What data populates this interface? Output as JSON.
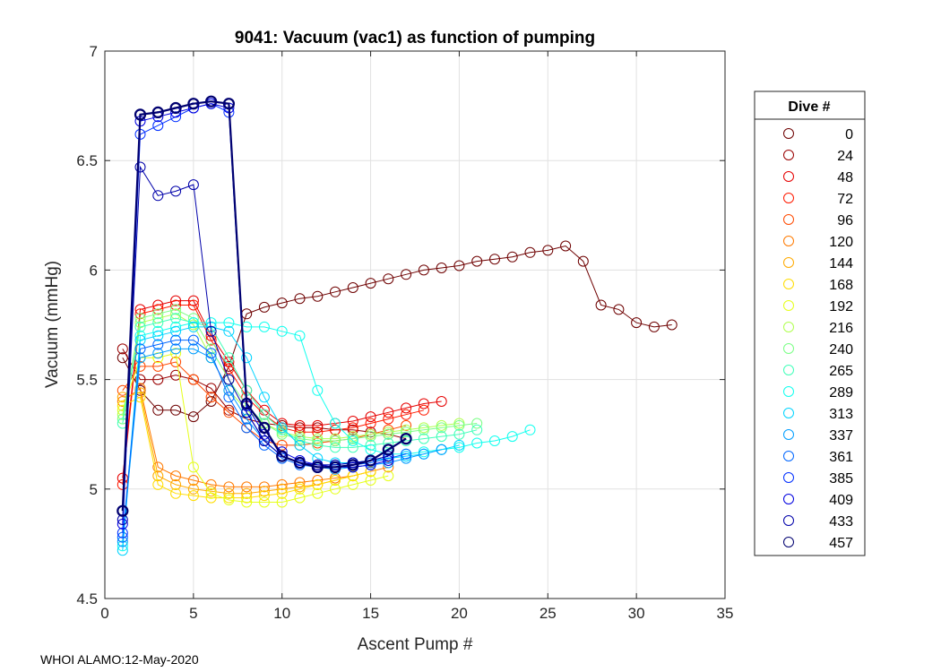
{
  "chart_data": {
    "type": "line",
    "title": "9041: Vacuum (vac1) as function of pumping",
    "xlabel": "Ascent Pump #",
    "ylabel": "Vacuum (mmHg)",
    "xlim": [
      0,
      35
    ],
    "ylim": [
      4.5,
      7
    ],
    "xticks": [
      0,
      5,
      10,
      15,
      20,
      25,
      30,
      35
    ],
    "yticks": [
      4.5,
      5,
      5.5,
      6,
      6.5,
      7
    ],
    "ytick_labels": [
      "4.5",
      "5",
      "5.5",
      "6",
      "6.5",
      "7"
    ],
    "grid": true,
    "marker": "open-circle",
    "legend": {
      "title": "Dive #",
      "placement": "outside-right",
      "entries": [
        "0",
        "24",
        "48",
        "72",
        "96",
        "120",
        "144",
        "168",
        "192",
        "216",
        "240",
        "265",
        "289",
        "313",
        "337",
        "361",
        "385",
        "409",
        "433",
        "457"
      ],
      "colors": [
        "#6e0000",
        "#9a0000",
        "#e60000",
        "#ff1a00",
        "#ff4a00",
        "#ff7a00",
        "#ffaa00",
        "#ffdd00",
        "#e6ff19",
        "#b0ff50",
        "#7aff85",
        "#40ffb9",
        "#10ffef",
        "#00d4ff",
        "#009eff",
        "#0066ff",
        "#002eff",
        "#0000e0",
        "#0000aa",
        "#000070"
      ]
    },
    "series": [
      {
        "name": "0",
        "x": [
          1,
          2,
          3,
          4,
          5,
          6,
          7,
          8,
          9,
          10,
          11,
          12,
          13,
          14,
          15,
          16,
          17,
          18,
          19,
          20,
          21,
          22,
          23,
          24,
          25,
          26,
          27,
          28,
          29,
          30,
          31,
          32
        ],
        "values": [
          5.6,
          5.45,
          5.36,
          5.36,
          5.33,
          5.4,
          5.56,
          5.8,
          5.83,
          5.85,
          5.87,
          5.88,
          5.9,
          5.92,
          5.94,
          5.96,
          5.98,
          6.0,
          6.01,
          6.02,
          6.04,
          6.05,
          6.06,
          6.08,
          6.09,
          6.11,
          6.04,
          5.84,
          5.82,
          5.76,
          5.74,
          5.75
        ]
      },
      {
        "name": "24",
        "x": [
          1,
          2,
          3,
          4,
          5,
          6,
          7,
          8,
          9,
          10,
          11,
          12,
          13,
          14,
          15,
          16,
          17
        ],
        "values": [
          5.64,
          5.5,
          5.5,
          5.52,
          5.5,
          5.46,
          5.36,
          5.32,
          5.3,
          5.29,
          5.28,
          5.28,
          5.27,
          5.27,
          5.26,
          5.25,
          5.23
        ]
      },
      {
        "name": "48",
        "x": [
          1,
          2,
          3,
          4,
          5,
          6,
          7,
          8,
          9,
          10,
          11,
          12,
          13,
          14,
          15,
          16,
          17,
          18,
          19
        ],
        "values": [
          5.05,
          5.82,
          5.84,
          5.86,
          5.86,
          5.7,
          5.58,
          5.45,
          5.36,
          5.3,
          5.29,
          5.29,
          5.3,
          5.31,
          5.33,
          5.35,
          5.37,
          5.39,
          5.4
        ]
      },
      {
        "name": "72",
        "x": [
          1,
          2,
          3,
          4,
          5,
          6,
          7,
          8,
          9,
          10,
          11,
          12,
          13,
          14,
          15,
          16,
          17,
          18
        ],
        "values": [
          5.02,
          5.8,
          5.82,
          5.84,
          5.84,
          5.68,
          5.55,
          5.42,
          5.34,
          5.28,
          5.26,
          5.26,
          5.27,
          5.28,
          5.3,
          5.32,
          5.34,
          5.36
        ]
      },
      {
        "name": "96",
        "x": [
          1,
          2,
          3,
          4,
          5,
          6,
          7,
          8,
          9,
          10,
          11,
          12,
          13,
          14,
          15,
          16,
          17
        ],
        "values": [
          5.45,
          5.56,
          5.56,
          5.58,
          5.5,
          5.42,
          5.35,
          5.28,
          5.22,
          5.2,
          5.2,
          5.21,
          5.22,
          5.23,
          5.25,
          5.27,
          5.29
        ]
      },
      {
        "name": "120",
        "x": [
          1,
          2,
          3,
          4,
          5,
          6,
          7,
          8,
          9,
          10,
          11,
          12,
          13,
          14,
          15,
          16
        ],
        "values": [
          5.4,
          5.46,
          5.1,
          5.06,
          5.04,
          5.02,
          5.01,
          5.01,
          5.01,
          5.02,
          5.03,
          5.04,
          5.05,
          5.06,
          5.08,
          5.1
        ]
      },
      {
        "name": "144",
        "x": [
          1,
          2,
          3,
          4,
          5,
          6,
          7,
          8,
          9,
          10,
          11,
          12,
          13,
          14,
          15
        ],
        "values": [
          5.42,
          5.44,
          5.06,
          5.02,
          5.0,
          4.99,
          4.98,
          4.98,
          4.99,
          5.0,
          5.01,
          5.02,
          5.04,
          5.06,
          5.08
        ]
      },
      {
        "name": "168",
        "x": [
          1,
          2,
          3,
          4,
          5,
          6,
          7,
          8,
          9,
          10,
          11,
          12,
          13,
          14,
          15
        ],
        "values": [
          5.38,
          5.42,
          5.02,
          4.98,
          4.97,
          4.96,
          4.96,
          4.96,
          4.97,
          4.98,
          5.0,
          5.02,
          5.04,
          5.06,
          5.08
        ]
      },
      {
        "name": "192",
        "x": [
          1,
          2,
          3,
          4,
          5,
          6,
          7,
          8,
          9,
          10,
          11,
          12,
          13,
          14,
          15,
          16
        ],
        "values": [
          5.36,
          5.6,
          5.6,
          5.62,
          5.1,
          4.98,
          4.95,
          4.94,
          4.94,
          4.94,
          4.96,
          4.98,
          5.0,
          5.02,
          5.04,
          5.06
        ]
      },
      {
        "name": "216",
        "x": [
          1,
          2,
          3,
          4,
          5,
          6,
          7,
          8,
          9,
          10,
          11,
          12,
          13,
          14,
          15,
          16,
          17,
          18,
          19,
          20
        ],
        "values": [
          5.34,
          5.76,
          5.78,
          5.8,
          5.75,
          5.6,
          5.45,
          5.36,
          5.3,
          5.26,
          5.24,
          5.23,
          5.23,
          5.24,
          5.25,
          5.26,
          5.27,
          5.28,
          5.29,
          5.3
        ]
      },
      {
        "name": "240",
        "x": [
          1,
          2,
          3,
          4,
          5,
          6,
          7,
          8,
          9,
          10,
          11,
          12,
          13,
          14,
          15,
          16,
          17,
          18,
          19,
          20,
          21
        ],
        "values": [
          5.32,
          5.78,
          5.8,
          5.82,
          5.78,
          5.64,
          5.5,
          5.38,
          5.3,
          5.25,
          5.23,
          5.22,
          5.22,
          5.23,
          5.24,
          5.25,
          5.26,
          5.27,
          5.28,
          5.29,
          5.3
        ]
      },
      {
        "name": "265",
        "x": [
          1,
          2,
          3,
          4,
          5,
          6,
          7,
          8,
          9,
          10,
          11,
          12,
          13,
          14,
          15,
          16,
          17,
          18,
          19,
          20,
          21
        ],
        "values": [
          5.3,
          5.74,
          5.76,
          5.78,
          5.76,
          5.74,
          5.6,
          5.45,
          5.34,
          5.27,
          5.22,
          5.2,
          5.19,
          5.19,
          5.2,
          5.21,
          5.22,
          5.23,
          5.24,
          5.25,
          5.27
        ]
      },
      {
        "name": "289",
        "x": [
          1,
          2,
          3,
          4,
          5,
          6,
          7,
          8,
          9,
          10,
          11,
          12,
          13,
          14,
          15,
          16,
          17,
          18,
          19,
          20,
          21,
          22,
          23,
          24
        ],
        "values": [
          4.74,
          5.7,
          5.72,
          5.74,
          5.76,
          5.76,
          5.76,
          5.74,
          5.74,
          5.72,
          5.7,
          5.45,
          5.3,
          5.22,
          5.18,
          5.16,
          5.16,
          5.17,
          5.18,
          5.19,
          5.21,
          5.22,
          5.24,
          5.27
        ]
      },
      {
        "name": "313",
        "x": [
          1,
          2,
          3,
          4,
          5,
          6,
          7,
          8,
          9,
          10,
          11,
          12,
          13,
          14,
          15,
          16,
          17,
          18,
          19,
          20
        ],
        "values": [
          4.72,
          5.68,
          5.7,
          5.72,
          5.74,
          5.74,
          5.72,
          5.6,
          5.42,
          5.28,
          5.2,
          5.14,
          5.12,
          5.12,
          5.13,
          5.14,
          5.15,
          5.16,
          5.18,
          5.2
        ]
      },
      {
        "name": "337",
        "x": [
          1,
          2,
          3,
          4,
          5,
          6,
          7,
          8,
          9,
          10,
          11,
          12,
          13,
          14,
          15,
          16,
          17,
          18,
          19
        ],
        "values": [
          4.76,
          5.6,
          5.62,
          5.64,
          5.64,
          5.6,
          5.45,
          5.32,
          5.22,
          5.15,
          5.12,
          5.1,
          5.09,
          5.1,
          5.11,
          5.12,
          5.14,
          5.16,
          5.18
        ]
      },
      {
        "name": "361",
        "x": [
          1,
          2,
          3,
          4,
          5,
          6,
          7,
          8,
          9,
          10,
          11,
          12,
          13,
          14,
          15,
          16,
          17
        ],
        "values": [
          4.78,
          5.64,
          5.66,
          5.68,
          5.68,
          5.62,
          5.42,
          5.28,
          5.2,
          5.14,
          5.11,
          5.1,
          5.1,
          5.11,
          5.12,
          5.14,
          5.16
        ]
      },
      {
        "name": "385",
        "x": [
          1,
          2,
          3,
          4,
          5,
          6,
          7,
          8,
          9,
          10,
          11,
          12,
          13,
          14,
          15,
          16
        ],
        "values": [
          4.8,
          6.62,
          6.66,
          6.7,
          6.74,
          6.76,
          6.72,
          5.35,
          5.22,
          5.15,
          5.12,
          5.11,
          5.11,
          5.12,
          5.13,
          5.15
        ]
      },
      {
        "name": "409",
        "x": [
          1,
          2,
          3,
          4,
          5,
          6,
          7,
          8,
          9,
          10,
          11,
          12,
          13,
          14,
          15,
          16
        ],
        "values": [
          4.84,
          6.68,
          6.7,
          6.72,
          6.74,
          6.76,
          6.74,
          5.38,
          5.25,
          5.17,
          5.13,
          5.11,
          5.1,
          5.1,
          5.11,
          5.13
        ]
      },
      {
        "name": "433",
        "x": [
          1,
          2,
          3,
          4,
          5,
          6,
          7,
          8,
          9,
          10,
          11,
          12,
          13,
          14,
          15,
          16
        ],
        "values": [
          4.86,
          6.47,
          6.34,
          6.36,
          6.39,
          5.72,
          5.5,
          5.35,
          5.22,
          5.15,
          5.12,
          5.11,
          5.11,
          5.12,
          5.13,
          5.15
        ]
      },
      {
        "name": "457",
        "x": [
          1,
          2,
          3,
          4,
          5,
          6,
          7,
          8,
          9,
          10,
          11,
          12,
          13,
          14,
          15,
          16,
          17
        ],
        "values": [
          4.9,
          6.71,
          6.72,
          6.74,
          6.76,
          6.77,
          6.76,
          5.39,
          5.28,
          5.15,
          5.12,
          5.1,
          5.1,
          5.11,
          5.13,
          5.18,
          5.23
        ]
      }
    ]
  },
  "footer": {
    "text": "WHOI ALAMO:12-May-2020"
  }
}
